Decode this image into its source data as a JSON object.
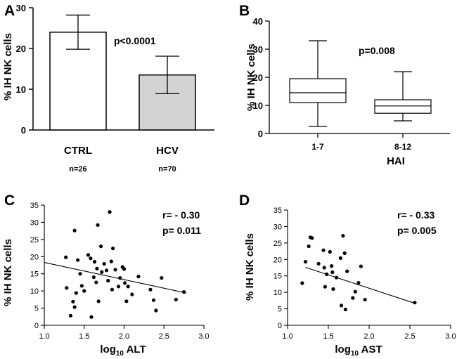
{
  "chart_data": [
    {
      "panel": "A",
      "type": "bar",
      "ylabel": "% IH NK cells",
      "ylim": [
        0,
        30
      ],
      "yticks": [
        0,
        10,
        20,
        30
      ],
      "categories": [
        "CTRL",
        "HCV"
      ],
      "sublabels": [
        "n=26",
        "n=70"
      ],
      "values": [
        24.0,
        13.5
      ],
      "errors": [
        4.2,
        4.6
      ],
      "bar_colors": [
        "#ffffff",
        "#d3d3d3"
      ],
      "annotation": "p<0.0001"
    },
    {
      "panel": "B",
      "type": "box",
      "xlabel": "HAI",
      "ylabel": "% IH NK cells",
      "ylim": [
        0,
        40
      ],
      "yticks": [
        0,
        10,
        20,
        30,
        40
      ],
      "categories": [
        "1-7",
        "8-12"
      ],
      "boxes": [
        {
          "min": 2.5,
          "q1": 11.0,
          "median": 14.5,
          "q3": 19.5,
          "max": 33.0
        },
        {
          "min": 4.5,
          "q1": 7.2,
          "median": 9.8,
          "q3": 12.0,
          "max": 22.0
        }
      ],
      "annotation": "p=0.008"
    },
    {
      "panel": "C",
      "type": "scatter",
      "xlabel_main": "log",
      "xlabel_sub": "10",
      "xlabel_rest": " ALT",
      "ylabel": "% IH NK cells",
      "xlim": [
        1.0,
        3.0
      ],
      "ylim": [
        0,
        35
      ],
      "xticks": [
        "1.0",
        "1.5",
        "2.0",
        "2.5",
        "3.0"
      ],
      "yticks": [
        "0",
        "5",
        "10",
        "15",
        "20",
        "25",
        "30",
        "35"
      ],
      "stats": [
        "r= - 0.30",
        "p= 0.011"
      ],
      "regression": [
        [
          1.0,
          18.3
        ],
        [
          2.78,
          9.4
        ]
      ],
      "points": [
        [
          1.27,
          19.8
        ],
        [
          1.28,
          10.9
        ],
        [
          1.33,
          2.8
        ],
        [
          1.36,
          6.9
        ],
        [
          1.38,
          27.6
        ],
        [
          1.38,
          5.3
        ],
        [
          1.4,
          9.4
        ],
        [
          1.42,
          19.0
        ],
        [
          1.45,
          15.0
        ],
        [
          1.47,
          11.5
        ],
        [
          1.5,
          10.0
        ],
        [
          1.55,
          20.5
        ],
        [
          1.58,
          19.5
        ],
        [
          1.59,
          2.4
        ],
        [
          1.62,
          14.0
        ],
        [
          1.63,
          18.5
        ],
        [
          1.65,
          12.5
        ],
        [
          1.66,
          16.5
        ],
        [
          1.67,
          29.2
        ],
        [
          1.68,
          7.0
        ],
        [
          1.71,
          23.0
        ],
        [
          1.72,
          15.5
        ],
        [
          1.75,
          17.9
        ],
        [
          1.78,
          16.0
        ],
        [
          1.8,
          13.0
        ],
        [
          1.82,
          33.0
        ],
        [
          1.84,
          18.6
        ],
        [
          1.85,
          10.4
        ],
        [
          1.86,
          22.4
        ],
        [
          1.89,
          16.2
        ],
        [
          1.93,
          11.3
        ],
        [
          1.95,
          13.8
        ],
        [
          1.98,
          17.0
        ],
        [
          2.0,
          16.4
        ],
        [
          2.01,
          12.3
        ],
        [
          2.03,
          7.0
        ],
        [
          2.05,
          11.3
        ],
        [
          2.1,
          9.0
        ],
        [
          2.18,
          14.2
        ],
        [
          2.33,
          10.4
        ],
        [
          2.37,
          7.3
        ],
        [
          2.4,
          4.3
        ],
        [
          2.47,
          13.8
        ],
        [
          2.65,
          7.5
        ],
        [
          2.75,
          9.7
        ]
      ]
    },
    {
      "panel": "D",
      "type": "scatter",
      "xlabel_main": "log",
      "xlabel_sub": "10",
      "xlabel_rest": " AST",
      "ylabel": "% IH NK cells",
      "xlim": [
        1.0,
        3.0
      ],
      "ylim": [
        0,
        35
      ],
      "xticks": [
        "1.0",
        "1.5",
        "2.0",
        "2.5",
        "3.0"
      ],
      "yticks": [
        "0",
        "5",
        "10",
        "15",
        "20",
        "25",
        "30",
        "35"
      ],
      "stats": [
        "r= - 0.33",
        "p= 0.005"
      ],
      "regression": [
        [
          1.22,
          17.6
        ],
        [
          2.57,
          6.6
        ]
      ],
      "points": [
        [
          1.18,
          12.8
        ],
        [
          1.22,
          19.3
        ],
        [
          1.26,
          24.0
        ],
        [
          1.28,
          26.7
        ],
        [
          1.3,
          26.5
        ],
        [
          1.38,
          18.7
        ],
        [
          1.44,
          22.8
        ],
        [
          1.45,
          17.5
        ],
        [
          1.46,
          11.7
        ],
        [
          1.48,
          15.5
        ],
        [
          1.52,
          22.3
        ],
        [
          1.54,
          18.0
        ],
        [
          1.55,
          16.1
        ],
        [
          1.56,
          11.0
        ],
        [
          1.6,
          14.5
        ],
        [
          1.65,
          20.4
        ],
        [
          1.66,
          6.0
        ],
        [
          1.68,
          27.2
        ],
        [
          1.7,
          21.9
        ],
        [
          1.71,
          4.8
        ],
        [
          1.73,
          16.4
        ],
        [
          1.8,
          8.3
        ],
        [
          1.83,
          10.2
        ],
        [
          1.87,
          12.9
        ],
        [
          1.9,
          17.9
        ],
        [
          1.95,
          7.8
        ],
        [
          2.56,
          6.9
        ]
      ]
    }
  ],
  "panel_letters": [
    "A",
    "B",
    "C",
    "D"
  ]
}
